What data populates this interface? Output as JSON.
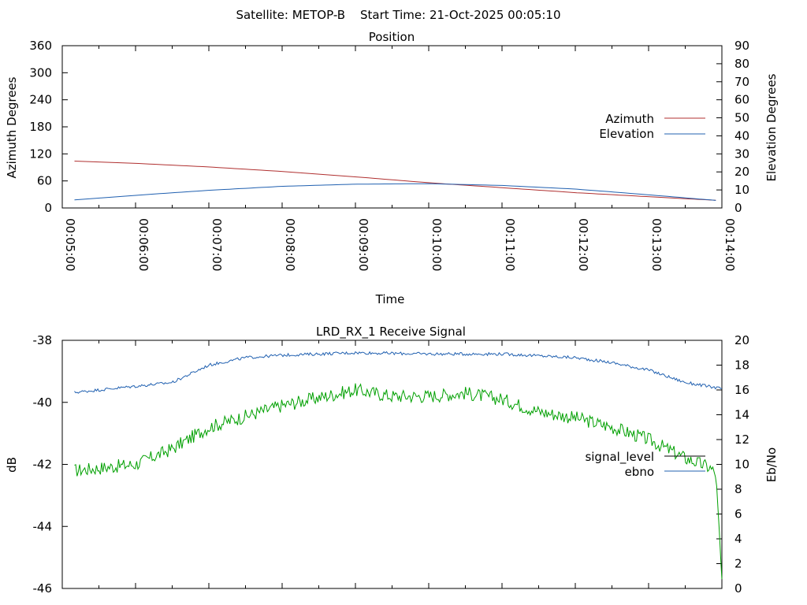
{
  "header": {
    "satellite_label": "Satellite: METOP-B",
    "start_label": "Start Time: 21-Oct-2025 00:05:10"
  },
  "colors": {
    "azimuth": "#b03030",
    "elevation": "#2060b0",
    "signal_level": "#00a000",
    "ebno": "#2060b0",
    "signal_level_legend": "#000000"
  },
  "chart_data": [
    {
      "type": "line",
      "title": "Position",
      "xlabel": "Time",
      "ylabel": "Azimuth Degrees",
      "y2label": "Elevation Degrees",
      "xlim": [
        "00:05:00",
        "00:14:00"
      ],
      "ylim": [
        0,
        360
      ],
      "y2lim": [
        0,
        90
      ],
      "x_ticks": [
        "00:05:00",
        "00:06:00",
        "00:07:00",
        "00:08:00",
        "00:09:00",
        "00:10:00",
        "00:11:00",
        "00:12:00",
        "00:13:00",
        "00:14:00"
      ],
      "y_ticks": [
        "0",
        "60",
        "120",
        "180",
        "240",
        "300",
        "360"
      ],
      "y2_ticks": [
        "0",
        "10",
        "20",
        "30",
        "40",
        "50",
        "60",
        "70",
        "80",
        "90"
      ],
      "legend_position": "right",
      "grid": false,
      "series": [
        {
          "name": "Azimuth",
          "axis": "y",
          "x": [
            "00:05:10",
            "00:06:00",
            "00:07:00",
            "00:08:00",
            "00:09:00",
            "00:10:00",
            "00:11:00",
            "00:12:00",
            "00:13:00",
            "00:13:55"
          ],
          "values": [
            104,
            99,
            91,
            81,
            69,
            56,
            45,
            34,
            25,
            17
          ]
        },
        {
          "name": "Elevation",
          "axis": "y2",
          "x": [
            "00:05:10",
            "00:06:00",
            "00:07:00",
            "00:08:00",
            "00:09:00",
            "00:10:00",
            "00:11:00",
            "00:12:00",
            "00:13:00",
            "00:13:55"
          ],
          "values": [
            4.5,
            7,
            9.8,
            12,
            13.2,
            13.5,
            12.5,
            10.5,
            7.3,
            4.2
          ]
        }
      ]
    },
    {
      "type": "line",
      "title": "LRD_RX_1 Receive Signal",
      "ylabel": "dB",
      "y2label": "Eb/No",
      "xlim": [
        "00:05:00",
        "00:14:00"
      ],
      "ylim": [
        -46,
        -38
      ],
      "y2lim": [
        0,
        20
      ],
      "y_ticks": [
        "-46",
        "-44",
        "-42",
        "-40",
        "-38"
      ],
      "y2_ticks": [
        "0",
        "2",
        "4",
        "6",
        "8",
        "10",
        "12",
        "14",
        "16",
        "18",
        "20"
      ],
      "legend_position": "right",
      "grid": false,
      "series": [
        {
          "name": "signal_level",
          "axis": "y",
          "x": [
            "00:05:10",
            "00:06:00",
            "00:06:30",
            "00:07:00",
            "00:08:00",
            "00:09:00",
            "00:09:30",
            "00:10:00",
            "00:10:30",
            "00:11:00",
            "00:11:30",
            "00:12:00",
            "00:12:30",
            "00:13:00",
            "00:13:30",
            "00:13:50",
            "00:13:55",
            "00:14:00"
          ],
          "values": [
            -42.2,
            -42.0,
            -41.5,
            -40.8,
            -40.1,
            -39.6,
            -39.8,
            -39.8,
            -39.7,
            -39.9,
            -40.3,
            -40.5,
            -40.8,
            -41.2,
            -41.8,
            -42.1,
            -42.3,
            -45.7
          ]
        },
        {
          "name": "ebno",
          "axis": "y2",
          "x": [
            "00:05:10",
            "00:06:00",
            "00:06:30",
            "00:07:00",
            "00:07:30",
            "00:08:00",
            "00:09:00",
            "00:10:00",
            "00:11:00",
            "00:12:00",
            "00:12:30",
            "00:13:00",
            "00:13:30",
            "00:14:00"
          ],
          "values": [
            15.8,
            16.3,
            16.6,
            18.0,
            18.6,
            18.8,
            19.0,
            18.9,
            18.9,
            18.6,
            18.2,
            17.6,
            16.6,
            16.1
          ]
        }
      ]
    }
  ]
}
